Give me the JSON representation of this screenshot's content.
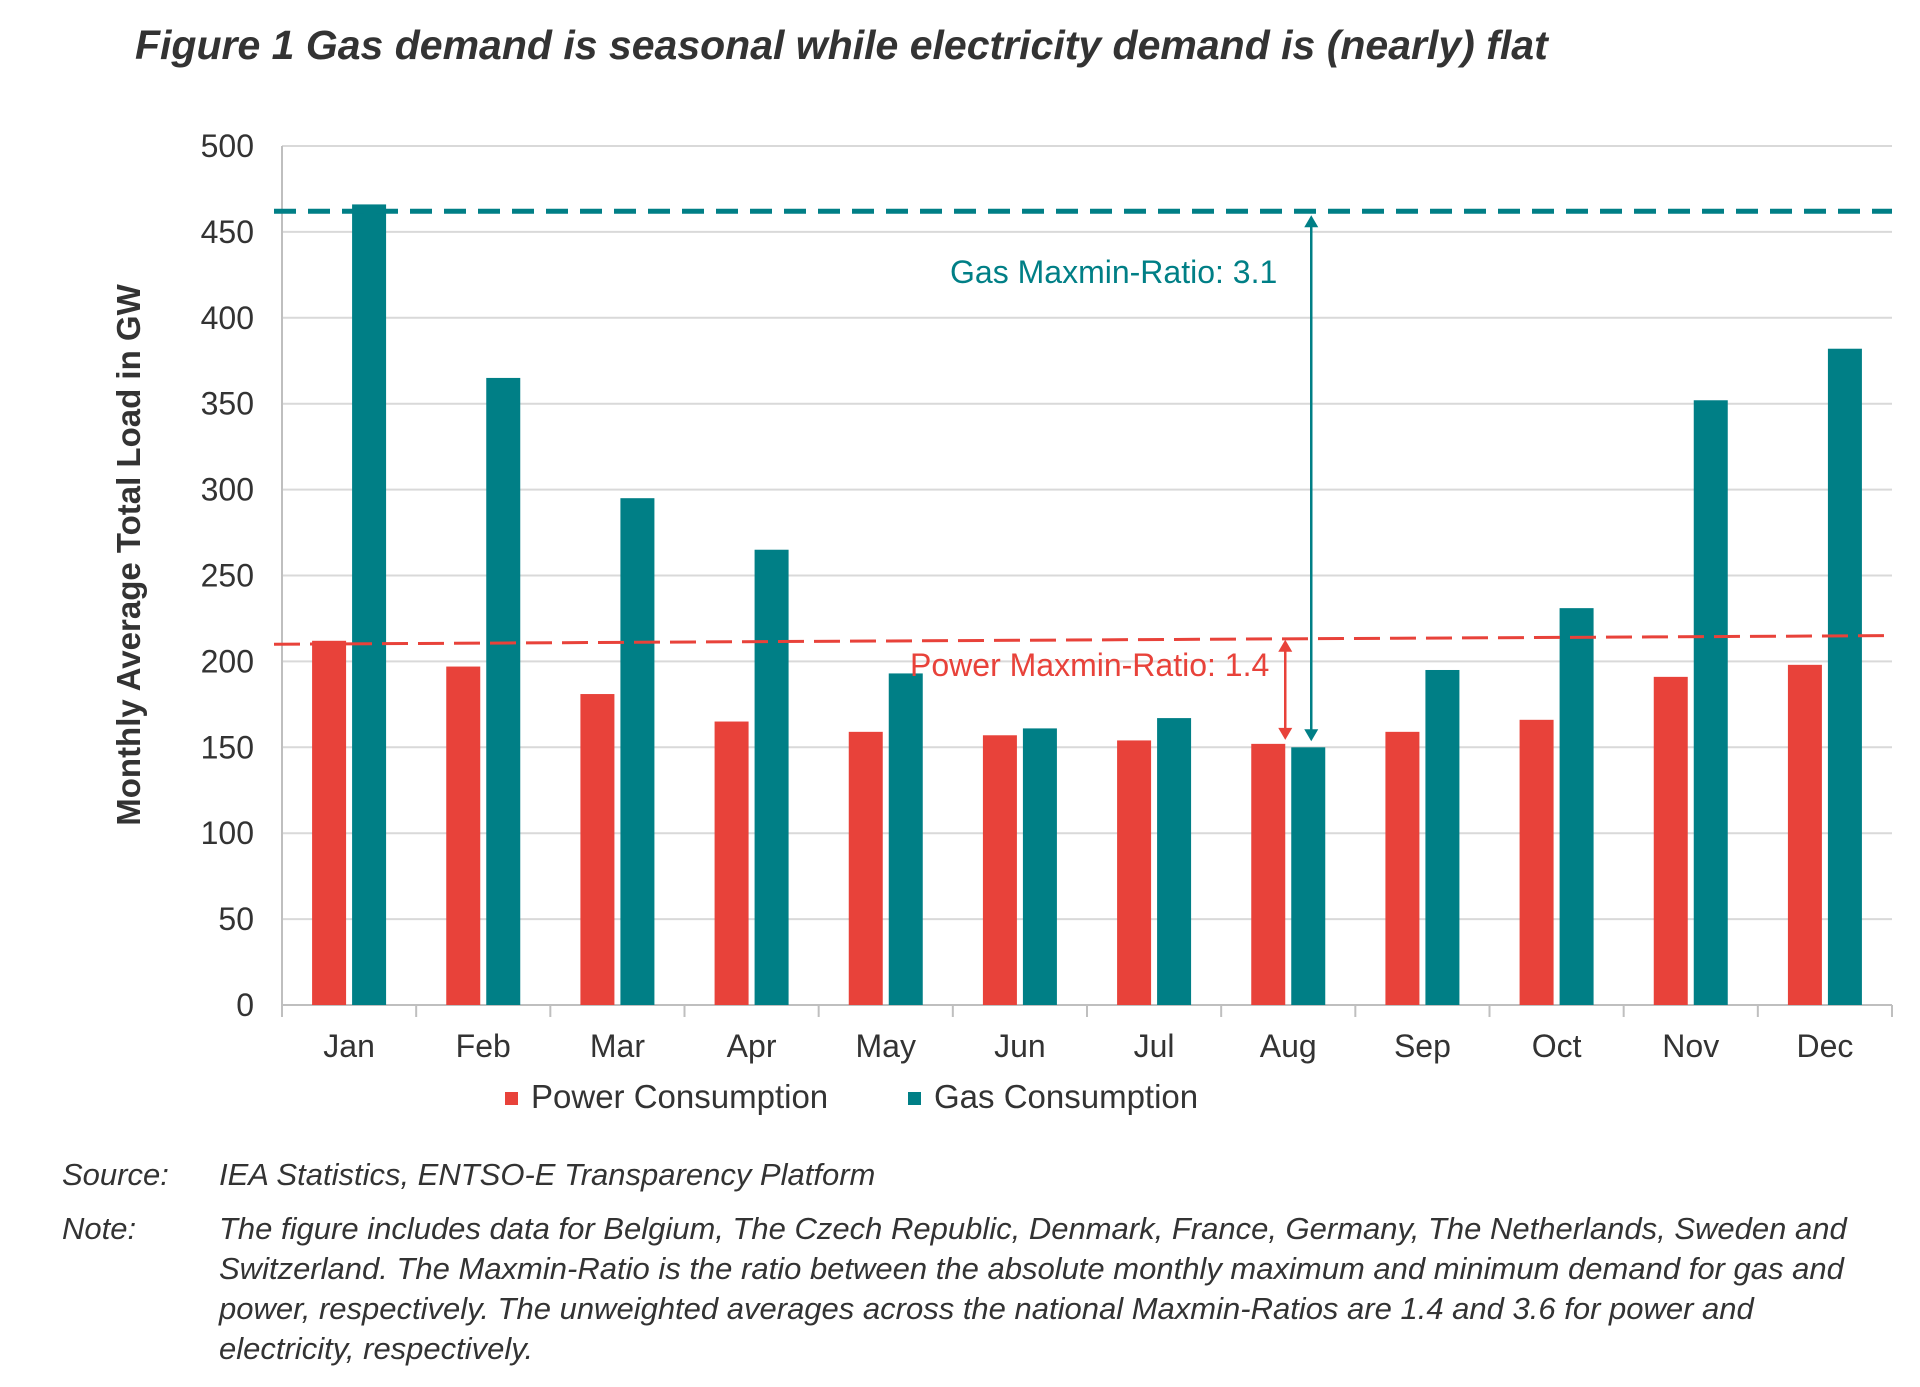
{
  "title": "Figure 1 Gas demand is seasonal while electricity demand is (nearly) flat",
  "chart_data": {
    "type": "bar",
    "categories": [
      "Jan",
      "Feb",
      "Mar",
      "Apr",
      "May",
      "Jun",
      "Jul",
      "Aug",
      "Sep",
      "Oct",
      "Nov",
      "Dec"
    ],
    "series": [
      {
        "name": "Power Consumption",
        "color": "#e8423a",
        "values": [
          212,
          197,
          181,
          165,
          159,
          157,
          154,
          152,
          159,
          166,
          191,
          198
        ]
      },
      {
        "name": "Gas Consumption",
        "color": "#007f86",
        "values": [
          466,
          365,
          295,
          265,
          193,
          161,
          167,
          150,
          195,
          231,
          352,
          382
        ]
      }
    ],
    "ylabel": "Monthly Average Total Load in GW",
    "ylim": [
      0,
      500
    ],
    "yticks": [
      0,
      50,
      100,
      150,
      200,
      250,
      300,
      350,
      400,
      450,
      500
    ],
    "grid": true,
    "legend": "bottom-center",
    "annotations": {
      "gas_line_level": 462,
      "gas_label": "Gas Maxmin-Ratio: 3.1",
      "gas_color": "#007f86",
      "power_line_start": 210,
      "power_line_end": 215,
      "power_label": "Power Maxmin-Ratio: 1.4",
      "power_color": "#e8423a",
      "arrow_month": "Aug"
    }
  },
  "notes": {
    "source_label": "Source:",
    "source_text": "IEA Statistics, ENTSO-E Transparency Platform",
    "note_label": "Note:",
    "note_text": "The figure includes data for Belgium, The Czech Republic,  Denmark, France, Germany, The Netherlands, Sweden and Switzerland. The Maxmin-Ratio is the ratio between the absolute monthly maximum and minimum demand for gas and power, respectively. The unweighted averages across the national Maxmin-Ratios are 1.4 and 3.6 for power and electricity, respectively."
  }
}
